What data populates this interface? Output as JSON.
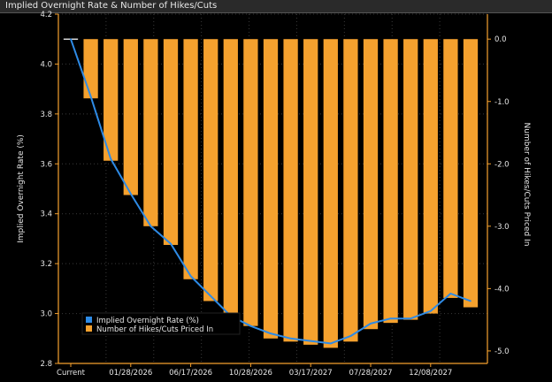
{
  "window": {
    "title": "Implied Overnight Rate & Number of Hikes/Cuts"
  },
  "colors": {
    "bar": "#F5A12E",
    "line": "#2E8BE6",
    "axis": "#F5A12E",
    "grid": "#3a3a3a",
    "background": "#000000"
  },
  "chart_data": {
    "type": "bar",
    "title": "Implied Overnight Rate & Number of Hikes/Cuts",
    "ylabel": "Implied Overnight Rate (%)",
    "y2label": "Number of Hikes/Cuts Priced In",
    "ylim": [
      2.8,
      4.2
    ],
    "y2lim": [
      -5.2,
      0.4
    ],
    "yticks": [
      "2.8",
      "3.0",
      "3.2",
      "3.4",
      "3.6",
      "3.8",
      "4.0",
      "4.2"
    ],
    "y2ticks": [
      "0.0",
      "-1.0",
      "-2.0",
      "-3.0",
      "-4.0",
      "-5.0"
    ],
    "xtick_labels": [
      "Current",
      "01/28/2026",
      "06/17/2026",
      "10/28/2026",
      "03/17/2027",
      "07/28/2027",
      "12/08/2027"
    ],
    "legend": {
      "position": "bottom-left"
    },
    "series": [
      {
        "name": "Implied Overnight Rate (%)",
        "type": "line",
        "axis": "left",
        "values": [
          4.1,
          3.87,
          3.62,
          3.48,
          3.35,
          3.28,
          3.15,
          3.07,
          2.99,
          2.95,
          2.92,
          2.9,
          2.89,
          2.88,
          2.91,
          2.96,
          2.98,
          2.98,
          3.01,
          3.08,
          3.05
        ]
      },
      {
        "name": "Number of Hikes/Cuts Priced In",
        "type": "bar",
        "axis": "right",
        "values": [
          0.0,
          -0.95,
          -1.95,
          -2.5,
          -3.0,
          -3.3,
          -3.85,
          -4.2,
          -4.45,
          -4.6,
          -4.8,
          -4.85,
          -4.9,
          -4.95,
          -4.85,
          -4.65,
          -4.55,
          -4.5,
          -4.4,
          -4.15,
          -4.3
        ]
      }
    ]
  }
}
